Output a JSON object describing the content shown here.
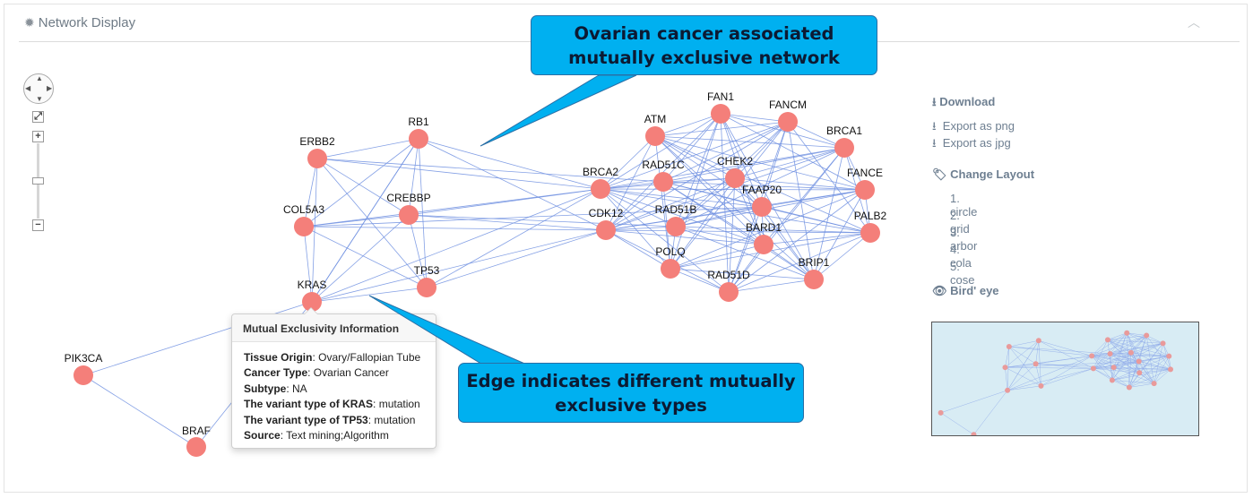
{
  "panel": {
    "title": "Network Display"
  },
  "sidebar": {
    "download_heading": "Download",
    "export_png": "Export as png",
    "export_jpg": "Export as jpg",
    "layout_heading": "Change Layout",
    "layouts": [
      "1. circle",
      "2. grid",
      "3. arbor",
      "4. cola",
      "5. cose"
    ],
    "birdseye_heading": "Bird' eye"
  },
  "network": {
    "node_color": "#f47f7a",
    "edge_color": "#6f8fe0",
    "nodes": [
      {
        "id": "RB1",
        "label": "RB1"
      },
      {
        "id": "ERBB2",
        "label": "ERBB2"
      },
      {
        "id": "CREBBP",
        "label": "CREBBP"
      },
      {
        "id": "COL5A3",
        "label": "COL5A3"
      },
      {
        "id": "TP53",
        "label": "TP53"
      },
      {
        "id": "KRAS",
        "label": "KRAS"
      },
      {
        "id": "PIK3CA",
        "label": "PIK3CA"
      },
      {
        "id": "BRAF",
        "label": "BRAF"
      },
      {
        "id": "ATM",
        "label": "ATM"
      },
      {
        "id": "FAN1",
        "label": "FAN1"
      },
      {
        "id": "FANCM",
        "label": "FANCM"
      },
      {
        "id": "BRCA1",
        "label": "BRCA1"
      },
      {
        "id": "BRCA2",
        "label": "BRCA2"
      },
      {
        "id": "RAD51C",
        "label": "RAD51C"
      },
      {
        "id": "CHEK2",
        "label": "CHEK2"
      },
      {
        "id": "FANCE",
        "label": "FANCE"
      },
      {
        "id": "FAAP20",
        "label": "FAAP20"
      },
      {
        "id": "CDK12",
        "label": "CDK12"
      },
      {
        "id": "RAD51B",
        "label": "RAD51B"
      },
      {
        "id": "PALB2",
        "label": "PALB2"
      },
      {
        "id": "BARD1",
        "label": "BARD1"
      },
      {
        "id": "POLQ",
        "label": "POLQ"
      },
      {
        "id": "BRIP1",
        "label": "BRIP1"
      },
      {
        "id": "RAD51D",
        "label": "RAD51D"
      }
    ]
  },
  "tooltip": {
    "title": "Mutual Exclusivity Information",
    "rows": [
      {
        "key": "Tissue Origin",
        "value": ": Ovary/Fallopian Tube"
      },
      {
        "key": "Cancer Type",
        "value": ": Ovarian Cancer"
      },
      {
        "key": "Subtype",
        "value": ": NA"
      },
      {
        "key": "The variant type of KRAS",
        "value": ": mutation"
      },
      {
        "key": "The variant type of TP53",
        "value": ": mutation"
      },
      {
        "key": "Source",
        "value": ": Text mining;Algorithm"
      }
    ]
  },
  "callouts": {
    "top_line1": "Ovarian cancer associated",
    "top_line2": "mutually exclusive network",
    "bottom_line1": "Edge indicates different mutually",
    "bottom_line2": "exclusive types",
    "fill": "#00b0f0"
  },
  "icons": [
    "gear-icon",
    "chevron-up-icon",
    "download-icon",
    "tag-icon",
    "eye-icon",
    "pan-icon",
    "fit-icon",
    "zoom-in-icon",
    "zoom-out-icon"
  ]
}
